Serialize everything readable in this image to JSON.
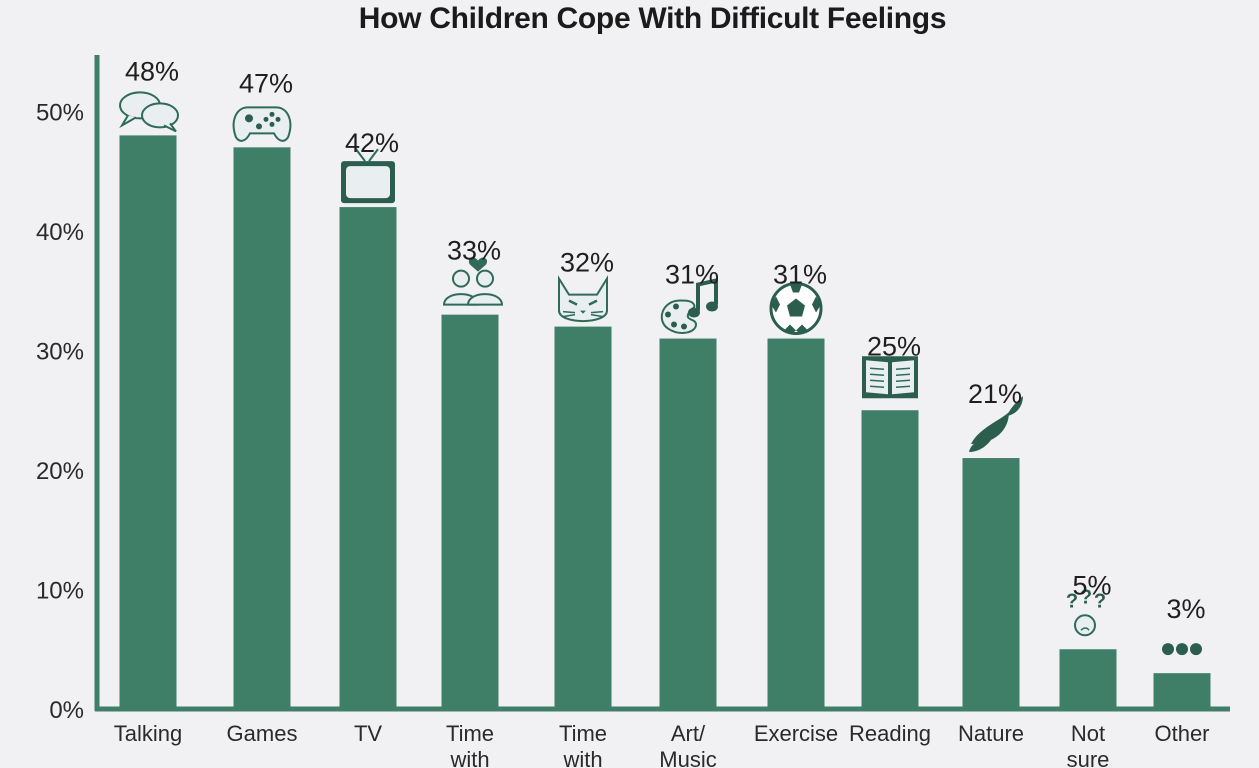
{
  "chart_data": {
    "type": "bar",
    "title": "How Children Cope With Difficult Feelings",
    "xlabel": "",
    "ylabel": "",
    "ylim": [
      0,
      55
    ],
    "yticks": [
      0,
      10,
      20,
      30,
      40,
      50
    ],
    "ytick_labels": [
      "0%",
      "10%",
      "20%",
      "30%",
      "40%",
      "50%"
    ],
    "categories": [
      "Talking",
      "Games",
      "TV",
      "Time with",
      "Time with",
      "Art/ Music",
      "Exercise",
      "Reading",
      "Nature",
      "Not sure",
      "Other"
    ],
    "category_lines": [
      [
        "Talking"
      ],
      [
        "Games"
      ],
      [
        "TV"
      ],
      [
        "Time",
        "with"
      ],
      [
        "Time",
        "with"
      ],
      [
        "Art/",
        "Music"
      ],
      [
        "Exercise"
      ],
      [
        "Reading"
      ],
      [
        "Nature"
      ],
      [
        "Not",
        "sure"
      ],
      [
        "Other"
      ]
    ],
    "values": [
      48,
      47,
      42,
      33,
      32,
      31,
      31,
      25,
      21,
      5,
      3
    ],
    "value_labels": [
      "48%",
      "47%",
      "42%",
      "33%",
      "32%",
      "31%",
      "31%",
      "25%",
      "21%",
      "5%",
      "3%"
    ],
    "icons": [
      "speech-bubbles-icon",
      "game-controller-icon",
      "tv-icon",
      "friends-icon",
      "cat-icon",
      "palette-music-icon",
      "soccer-ball-icon",
      "open-book-icon",
      "leaves-icon",
      "question-face-icon",
      "ellipsis-icon"
    ],
    "grid": false,
    "legend": "none"
  },
  "colors": {
    "bar": "#3f7f68",
    "axis": "#3f7f68",
    "icon_fill": "#e9eef0",
    "icon_stroke": "#2f6b57",
    "icon_dark": "#2b5e4d",
    "background": "#f1f1f3"
  }
}
